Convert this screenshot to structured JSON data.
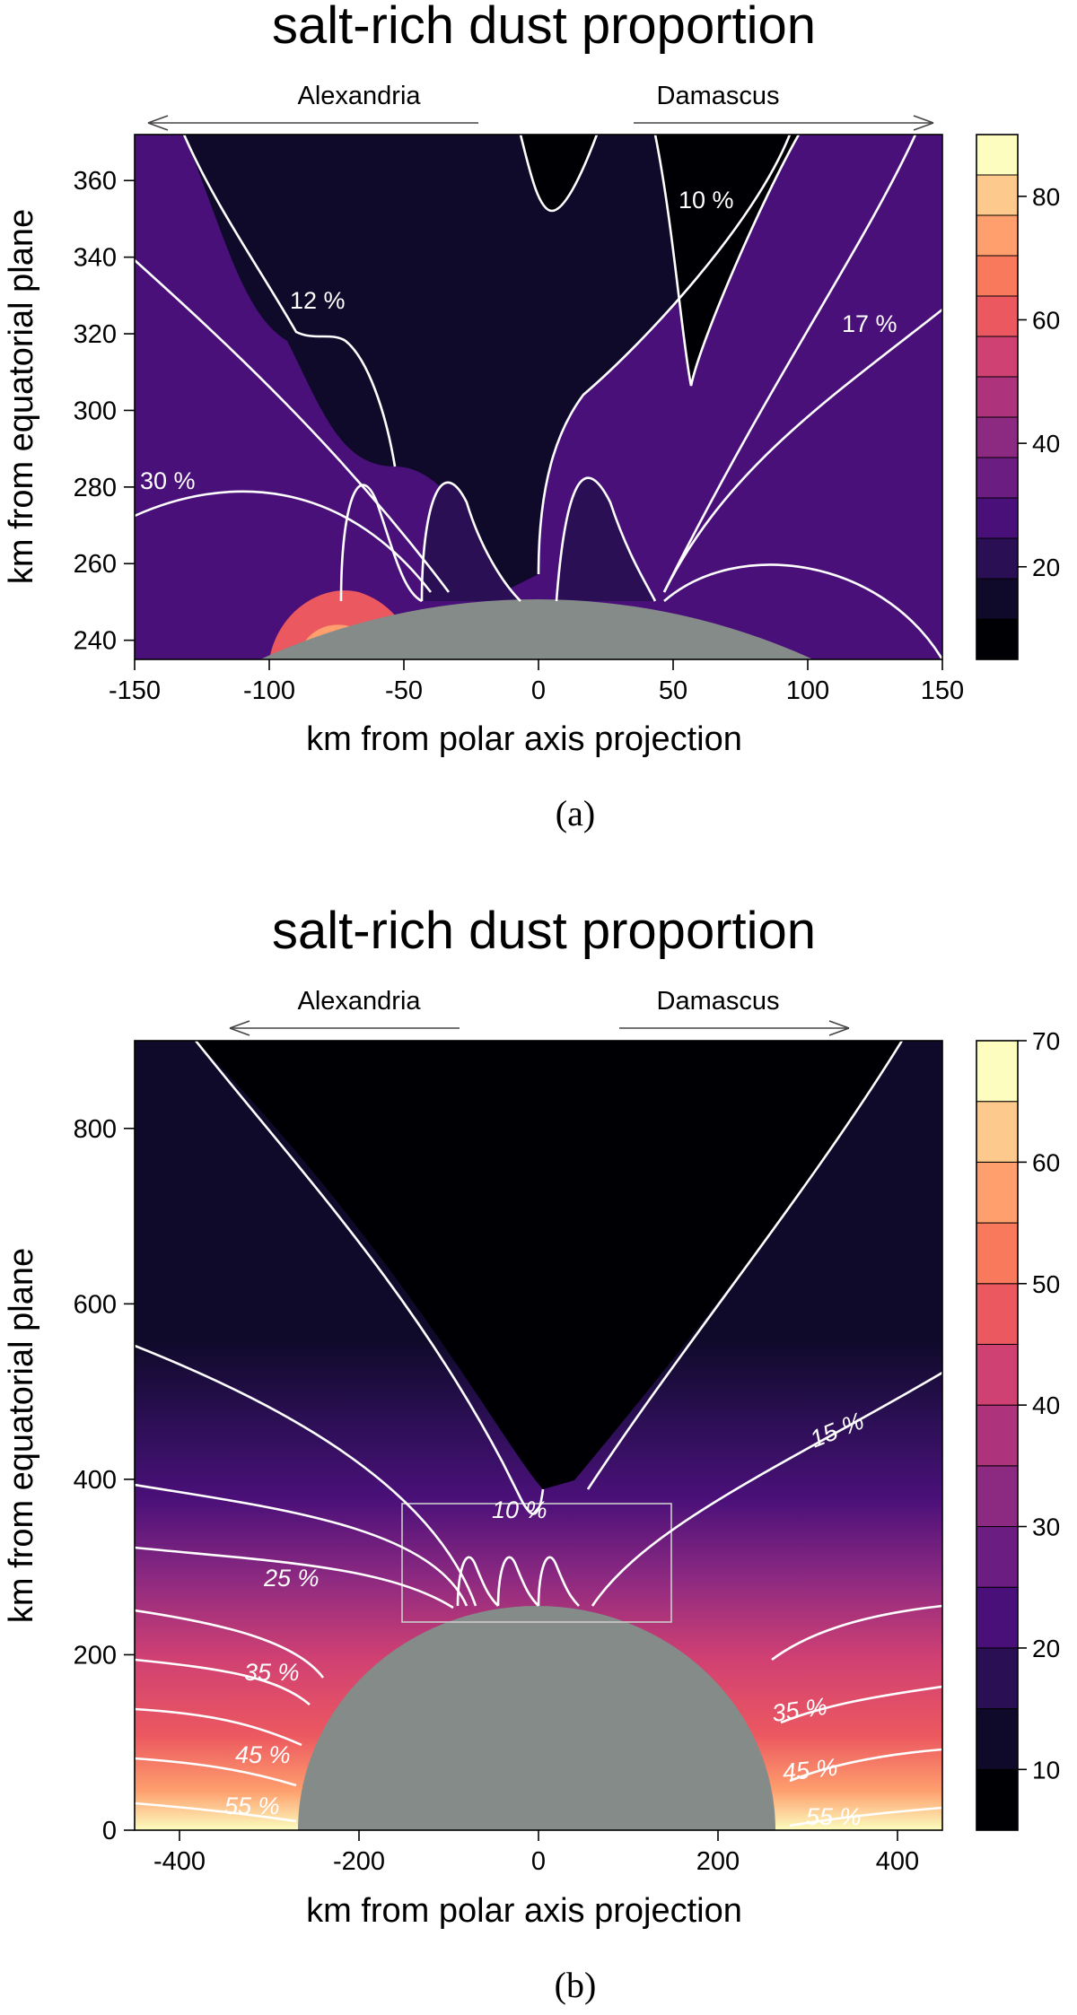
{
  "figure": {
    "panel_a": {
      "title": "salt-rich dust proportion",
      "label": "(a)",
      "xlabel": "km from polar axis projection",
      "ylabel": "km from equatorial plane",
      "arrow_left": "Alexandria",
      "arrow_right": "Damascus",
      "xticks": [
        "-150",
        "-100",
        "-50",
        "0",
        "50",
        "100",
        "150"
      ],
      "yticks": [
        "240",
        "260",
        "280",
        "300",
        "320",
        "340",
        "360"
      ],
      "colorbar_ticks": [
        "20",
        "40",
        "60",
        "80"
      ],
      "contour_labels": [
        "12 %",
        "10 %",
        "17 %",
        "30 %"
      ]
    },
    "panel_b": {
      "title": "salt-rich dust proportion",
      "label": "(b)",
      "xlabel": "km from polar axis projection",
      "ylabel": "km from equatorial plane",
      "arrow_left": "Alexandria",
      "arrow_right": "Damascus",
      "xticks": [
        "-400",
        "-200",
        "0",
        "200",
        "400"
      ],
      "yticks": [
        "0",
        "200",
        "400",
        "600",
        "800"
      ],
      "colorbar_ticks": [
        "10",
        "20",
        "30",
        "40",
        "50",
        "60",
        "70"
      ],
      "contour_labels": [
        "10 %",
        "15 %",
        "25 %",
        "35 %",
        "45 %",
        "55 %",
        "35 %",
        "45 %",
        "55 %"
      ]
    }
  },
  "colors": {
    "body_grey": "#858b88",
    "contour_line": "#ffffff",
    "palette": [
      "#000004",
      "#0f0a2a",
      "#2b0f54",
      "#4a1079",
      "#6b1d81",
      "#8c2981",
      "#ad347c",
      "#cf4073",
      "#ec5860",
      "#f9795d",
      "#fe9f6d",
      "#fec98d",
      "#fcfdbf"
    ]
  },
  "chart_data": [
    {
      "type": "heatmap",
      "title": "salt-rich dust proportion",
      "xlabel": "km from polar axis projection",
      "ylabel": "km from equatorial plane",
      "xlim": [
        -150,
        150
      ],
      "ylim": [
        235,
        372
      ],
      "colorbar_range": [
        5,
        90
      ],
      "colorbar_ticks": [
        20,
        40,
        60,
        80
      ],
      "contour_levels_labeled": [
        {
          "label": "12 %",
          "value": 12
        },
        {
          "label": "10 %",
          "value": 10
        },
        {
          "label": "17 %",
          "value": 17
        },
        {
          "label": "30 %",
          "value": 30
        }
      ],
      "body": {
        "center_x": 0,
        "center_y": 0,
        "radius": 252
      }
    },
    {
      "type": "heatmap",
      "title": "salt-rich dust proportion",
      "xlabel": "km from polar axis projection",
      "ylabel": "km from equatorial plane",
      "xlim": [
        -450,
        450
      ],
      "ylim": [
        0,
        900
      ],
      "colorbar_range": [
        5,
        70
      ],
      "colorbar_ticks": [
        10,
        20,
        30,
        40,
        50,
        60,
        70
      ],
      "contour_levels_labeled": [
        {
          "label": "10 %",
          "value": 10
        },
        {
          "label": "15 %",
          "value": 15
        },
        {
          "label": "25 %",
          "value": 25
        },
        {
          "label": "35 %",
          "value": 35
        },
        {
          "label": "45 %",
          "value": 45
        },
        {
          "label": "55 %",
          "value": 55
        }
      ],
      "body": {
        "center_x": 0,
        "center_y": 0,
        "radius": 252
      },
      "inset_box": {
        "x": [
          -150,
          150
        ],
        "y": [
          235,
          372
        ]
      }
    }
  ]
}
